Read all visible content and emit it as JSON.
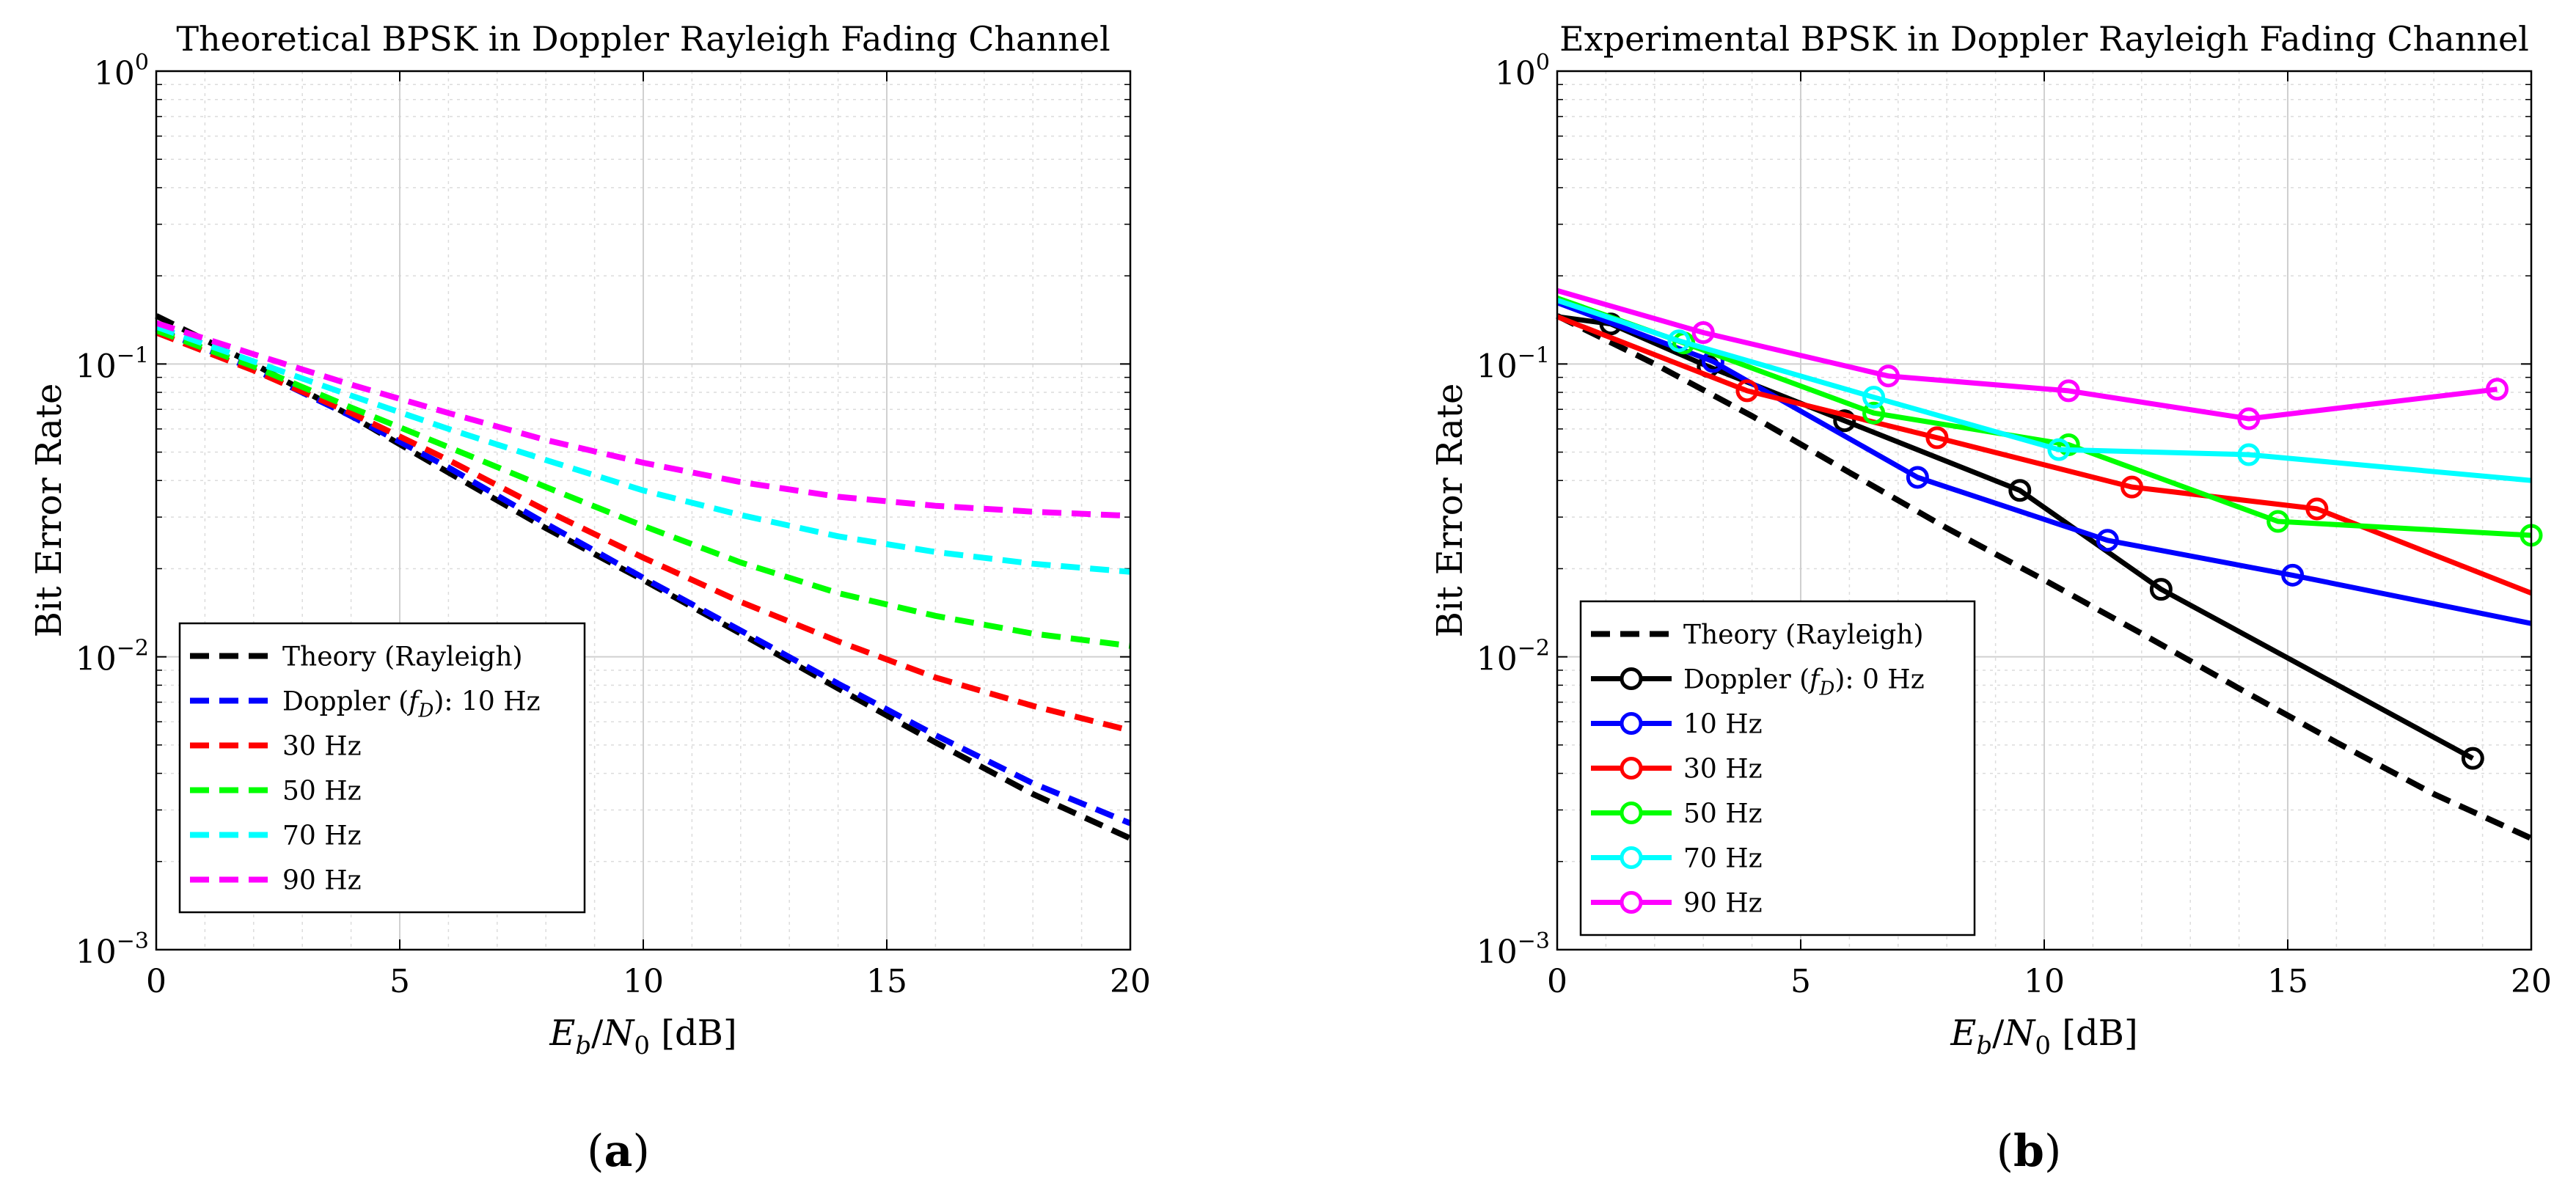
{
  "chart_data": [
    {
      "type": "line",
      "panel_label": "a",
      "title": "Theoretical BPSK in Doppler Rayleigh Fading Channel",
      "xlabel": "E_b/N_0 [dB]",
      "xlabel_parts": {
        "E": "E",
        "b": "b",
        "N": "N",
        "zero": "0",
        "unit": " [dB]"
      },
      "ylabel": "Bit Error Rate",
      "yscale": "log",
      "xlim": [
        0,
        20
      ],
      "ylim": [
        0.001,
        1
      ],
      "xticks": [
        0,
        5,
        10,
        15,
        20
      ],
      "xtick_labels": [
        "0",
        "5",
        "10",
        "15",
        "20"
      ],
      "yticks": [
        0.001,
        0.01,
        0.1,
        1
      ],
      "ytick_labels": [
        {
          "base": "10",
          "exp": "−3"
        },
        {
          "base": "10",
          "exp": "−2"
        },
        {
          "base": "10",
          "exp": "−1"
        },
        {
          "base": "10",
          "exp": "0"
        }
      ],
      "grid": true,
      "legend_position": "bottom-left",
      "x": [
        0,
        2,
        4,
        6,
        8,
        10,
        12,
        14,
        16,
        18,
        20
      ],
      "series": [
        {
          "name": "Theory (Rayleigh)",
          "color": "#000000",
          "style": "dashed",
          "values": [
            0.146,
            0.1,
            0.0664,
            0.0426,
            0.0275,
            0.0183,
            0.012,
            0.0078,
            0.0051,
            0.0034,
            0.0024
          ]
        },
        {
          "name": "Doppler (fD): 10 Hz",
          "color": "#0000ff",
          "style": "dashed",
          "values": [
            0.132,
            0.096,
            0.0664,
            0.0443,
            0.0285,
            0.0186,
            0.0123,
            0.0081,
            0.0054,
            0.0037,
            0.0027
          ]
        },
        {
          "name": "30 Hz",
          "color": "#ff0000",
          "style": "dashed",
          "values": [
            0.128,
            0.095,
            0.068,
            0.047,
            0.0316,
            0.0218,
            0.0154,
            0.0113,
            0.0085,
            0.0068,
            0.0056
          ]
        },
        {
          "name": "50 Hz",
          "color": "#00ff00",
          "style": "dashed",
          "values": [
            0.13,
            0.098,
            0.071,
            0.052,
            0.038,
            0.028,
            0.021,
            0.0165,
            0.0138,
            0.012,
            0.0109
          ]
        },
        {
          "name": "70 Hz",
          "color": "#00ffff",
          "style": "dashed",
          "values": [
            0.134,
            0.102,
            0.078,
            0.06,
            0.047,
            0.037,
            0.0305,
            0.0258,
            0.0228,
            0.0208,
            0.0195
          ]
        },
        {
          "name": "90 Hz",
          "color": "#ff00ff",
          "style": "dashed",
          "values": [
            0.138,
            0.108,
            0.085,
            0.068,
            0.055,
            0.046,
            0.0395,
            0.0352,
            0.0328,
            0.0313,
            0.0303
          ]
        }
      ],
      "legend": {
        "entries": [
          {
            "parts": [
              "Theory (Rayleigh)"
            ]
          },
          {
            "parts": [
              "Doppler (",
              "f",
              "D",
              "): 10 Hz"
            ]
          },
          {
            "parts": [
              "30 Hz"
            ]
          },
          {
            "parts": [
              "50 Hz"
            ]
          },
          {
            "parts": [
              "70 Hz"
            ]
          },
          {
            "parts": [
              "90 Hz"
            ]
          }
        ]
      }
    },
    {
      "type": "line",
      "panel_label": "b",
      "title": "Experimental BPSK in Doppler Rayleigh Fading Channel",
      "xlabel": "E_b/N_0 [dB]",
      "xlabel_parts": {
        "E": "E",
        "b": "b",
        "N": "N",
        "zero": "0",
        "unit": " [dB]"
      },
      "ylabel": "Bit Error Rate",
      "yscale": "log",
      "xlim": [
        0,
        20
      ],
      "ylim": [
        0.001,
        1
      ],
      "xticks": [
        0,
        5,
        10,
        15,
        20
      ],
      "xtick_labels": [
        "0",
        "5",
        "10",
        "15",
        "20"
      ],
      "yticks": [
        0.001,
        0.01,
        0.1,
        1
      ],
      "ytick_labels": [
        {
          "base": "10",
          "exp": "−3"
        },
        {
          "base": "10",
          "exp": "−2"
        },
        {
          "base": "10",
          "exp": "−1"
        },
        {
          "base": "10",
          "exp": "0"
        }
      ],
      "grid": true,
      "legend_position": "bottom-left",
      "series": [
        {
          "name": "Theory (Rayleigh)",
          "color": "#000000",
          "style": "dashed",
          "markers": false,
          "x": [
            0,
            2,
            4,
            6,
            8,
            10,
            12,
            14,
            16,
            18,
            20
          ],
          "values": [
            0.146,
            0.1,
            0.0664,
            0.0426,
            0.0275,
            0.0183,
            0.012,
            0.0078,
            0.0051,
            0.0034,
            0.0024
          ]
        },
        {
          "name": "Doppler (fD): 0 Hz",
          "color": "#000000",
          "style": "solid",
          "markers": true,
          "x": [
            0,
            1.1,
            3.1,
            5.9,
            9.5,
            12.4,
            18.8
          ],
          "values": [
            0.145,
            0.137,
            0.098,
            0.064,
            0.037,
            0.017,
            0.0045
          ],
          "marked": [
            false,
            true,
            true,
            true,
            true,
            true,
            true
          ]
        },
        {
          "name": "10 Hz",
          "color": "#0000ff",
          "style": "solid",
          "markers": true,
          "x": [
            0,
            3.2,
            7.4,
            11.3,
            15.1,
            20
          ],
          "values": [
            0.162,
            0.102,
            0.041,
            0.025,
            0.019,
            0.013
          ],
          "marked": [
            false,
            true,
            true,
            true,
            true,
            false
          ]
        },
        {
          "name": "30 Hz",
          "color": "#ff0000",
          "style": "solid",
          "markers": true,
          "x": [
            0,
            3.9,
            7.8,
            11.8,
            15.6,
            20
          ],
          "values": [
            0.145,
            0.081,
            0.056,
            0.038,
            0.032,
            0.0165
          ],
          "marked": [
            false,
            true,
            true,
            true,
            true,
            false
          ]
        },
        {
          "name": "50 Hz",
          "color": "#00ff00",
          "style": "solid",
          "markers": true,
          "x": [
            0,
            2.6,
            6.5,
            10.5,
            14.8,
            20
          ],
          "values": [
            0.168,
            0.118,
            0.068,
            0.053,
            0.029,
            0.026
          ],
          "marked": [
            false,
            true,
            true,
            true,
            true,
            true
          ]
        },
        {
          "name": "70 Hz",
          "color": "#00ffff",
          "style": "solid",
          "markers": true,
          "x": [
            0,
            2.5,
            6.5,
            10.3,
            14.2,
            20
          ],
          "values": [
            0.165,
            0.12,
            0.077,
            0.051,
            0.049,
            0.04
          ],
          "marked": [
            false,
            true,
            true,
            true,
            true,
            false
          ]
        },
        {
          "name": "90 Hz",
          "color": "#ff00ff",
          "style": "solid",
          "markers": true,
          "x": [
            0,
            3,
            6.8,
            10.5,
            14.2,
            19.3
          ],
          "values": [
            0.178,
            0.128,
            0.091,
            0.081,
            0.065,
            0.082
          ],
          "marked": [
            false,
            true,
            true,
            true,
            true,
            true
          ]
        }
      ],
      "legend": {
        "entries": [
          {
            "parts": [
              "Theory (Rayleigh)"
            ]
          },
          {
            "parts": [
              "Doppler (",
              "f",
              "D",
              "): 0 Hz"
            ]
          },
          {
            "parts": [
              "10 Hz"
            ]
          },
          {
            "parts": [
              "30 Hz"
            ]
          },
          {
            "parts": [
              "50 Hz"
            ]
          },
          {
            "parts": [
              "70 Hz"
            ]
          },
          {
            "parts": [
              "90 Hz"
            ]
          }
        ]
      }
    }
  ]
}
